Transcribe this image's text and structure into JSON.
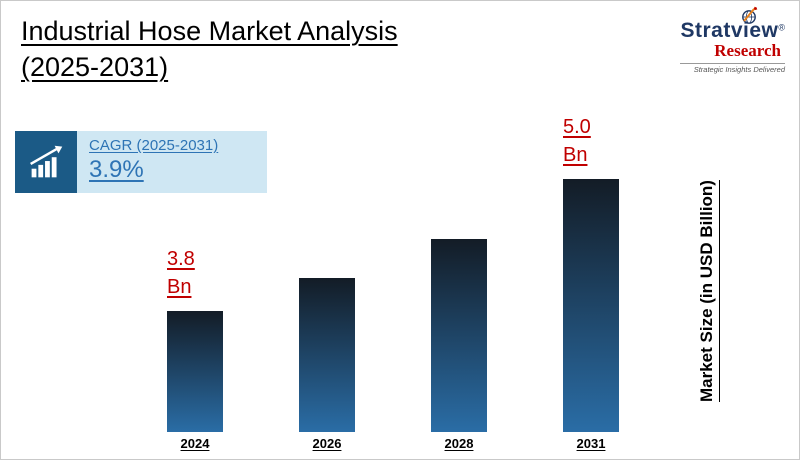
{
  "header": {
    "title_line1": "Industrial Hose Market Analysis",
    "title_line2": "(2025-2031)"
  },
  "logo": {
    "brand": "Stratview",
    "registered": "®",
    "sub_brand": "Research",
    "tagline": "Strategic Insights Delivered"
  },
  "cagr": {
    "label": "CAGR (2025-2031)",
    "value": "3.9%"
  },
  "colors": {
    "accent_blue": "#2e74b5",
    "brand_navy": "#1f3864",
    "brand_red": "#c00000",
    "cagr_box_bg": "#cfe7f3",
    "cagr_icon_bg": "#1b5a86",
    "bar_top": "#131c26",
    "bar_bottom": "#2a6da6",
    "value_label": "#c00000"
  },
  "chart_data": {
    "type": "bar",
    "title": "Industrial Hose Market Analysis (2025-2031)",
    "categories": [
      "2024",
      "2026",
      "2028",
      "2031"
    ],
    "values": [
      3.8,
      4.1,
      4.45,
      5.0
    ],
    "value_labels": [
      {
        "category": "2024",
        "line1": "3.8",
        "line2": "Bn"
      },
      {
        "category": "2031",
        "line1": "5.0",
        "line2": "Bn"
      }
    ],
    "xlabel": "",
    "ylabel": "Market Size (in  USD Billion)",
    "ylim": [
      2.7,
      5.2
    ],
    "grid": false,
    "legend": false,
    "cagr_2025_2031_pct": 3.9
  }
}
